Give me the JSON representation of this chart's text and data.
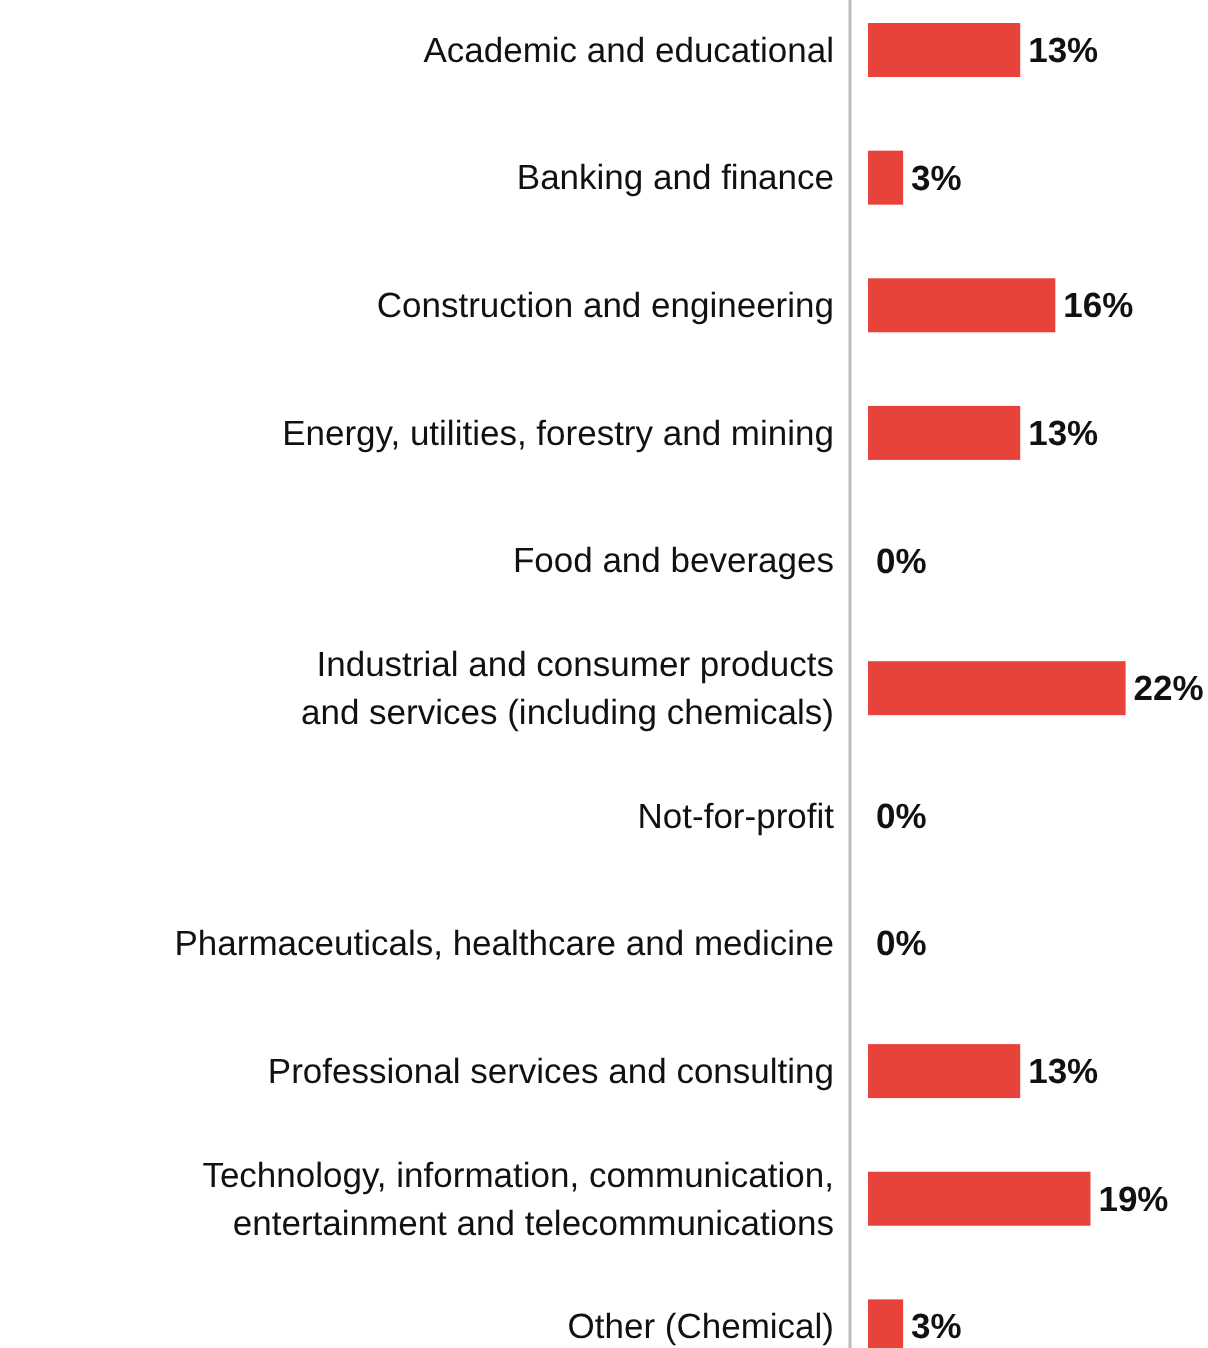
{
  "chart_data": {
    "type": "bar",
    "orientation": "horizontal",
    "categories": [
      "Academic and educational",
      "Banking and finance",
      "Construction and engineering",
      "Energy, utilities, forestry and mining",
      "Food and beverages",
      "Industrial and consumer products\nand services (including chemicals)",
      "Not-for-profit",
      "Pharmaceuticals, healthcare and medicine",
      "Professional services and consulting",
      "Technology, information, communication,\nentertainment and telecommunications",
      "Other (Chemical)"
    ],
    "values": [
      13,
      3,
      16,
      13,
      0,
      22,
      0,
      0,
      13,
      19,
      3
    ],
    "value_labels": [
      "13%",
      "3%",
      "16%",
      "13%",
      "0%",
      "22%",
      "0%",
      "0%",
      "13%",
      "19%",
      "3%"
    ],
    "color": "#e8433a",
    "grid": false,
    "legend": false
  }
}
